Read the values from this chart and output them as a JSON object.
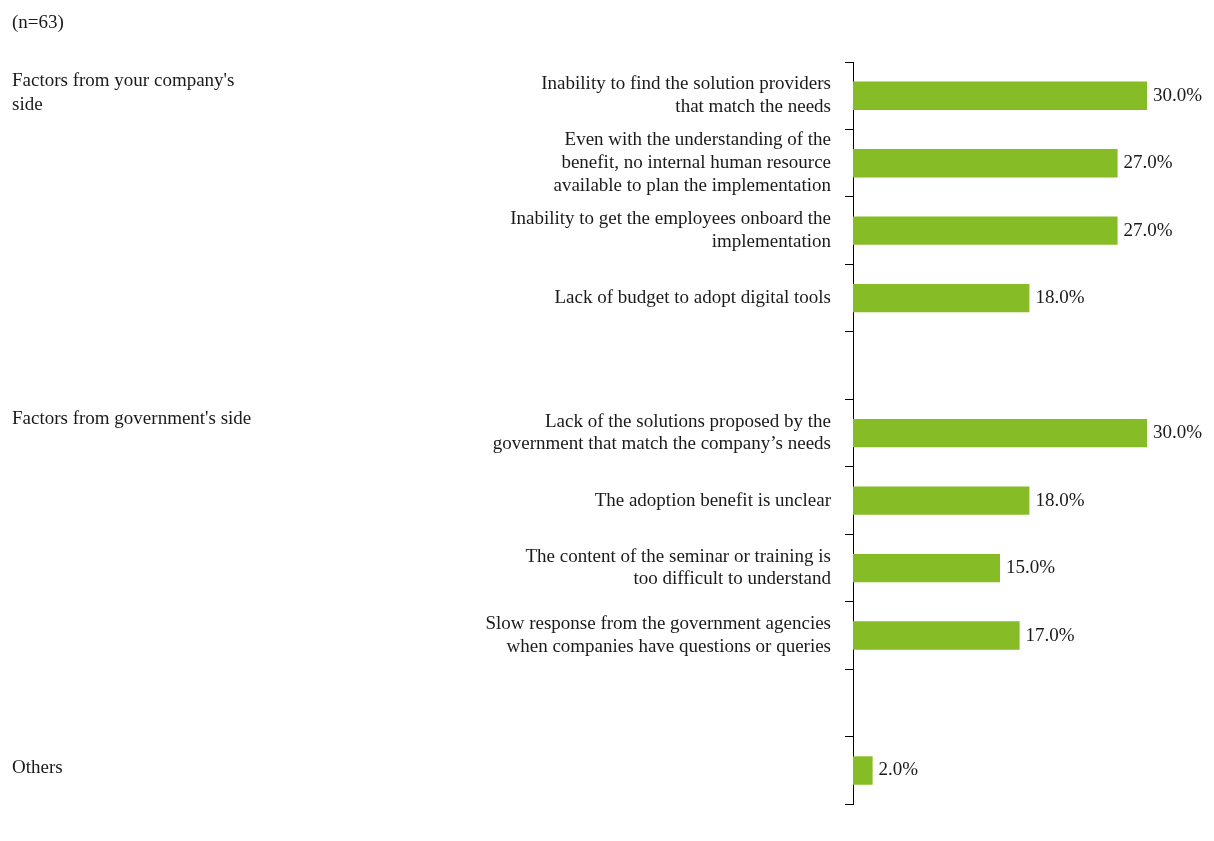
{
  "chart_data": {
    "type": "bar",
    "orientation": "horizontal",
    "categories": [
      "Inability to find the solution providers that match the needs",
      "Even with the understanding of the benefit, no internal human resource available to plan the implementation",
      "Inability to get the employees onboard the implementation",
      "Lack of budget to adopt digital tools",
      null,
      "Lack of the solutions proposed by the government that match the company’s needs",
      "The adoption benefit is unclear",
      "The content of the seminar or training is too difficult to understand",
      "Slow response from the government agencies when companies have questions or queries",
      null,
      null
    ],
    "values": [
      30.0,
      27.0,
      27.0,
      18.0,
      null,
      30.0,
      18.0,
      15.0,
      17.0,
      null,
      2.0
    ],
    "value_labels": [
      "30.0%",
      "27.0%",
      "27.0%",
      "18.0%",
      null,
      "30.0%",
      "18.0%",
      "15.0%",
      "17.0%",
      null,
      "2.0%"
    ],
    "color": "#86bc25",
    "legend": false,
    "grid": false,
    "annotations": [
      "(n=63)",
      "Factors from your company's side",
      "Factors from government's side",
      "Others"
    ]
  }
}
